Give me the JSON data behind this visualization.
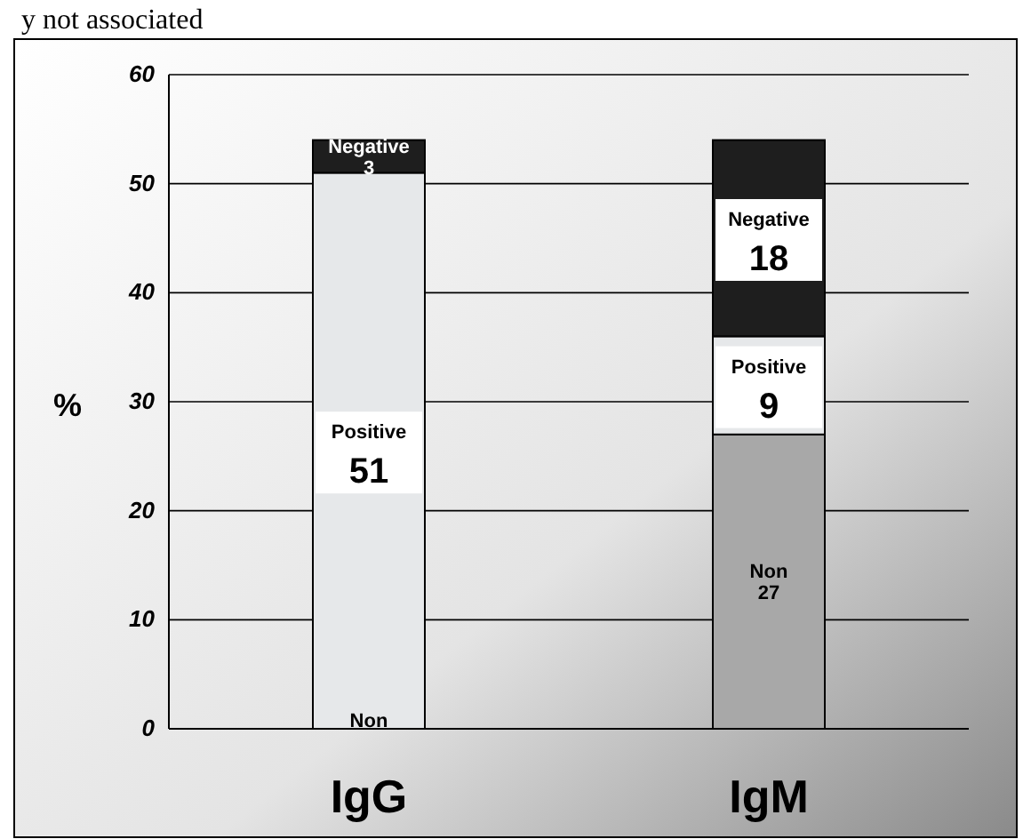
{
  "chart_data": {
    "type": "bar",
    "title": "y not associated",
    "ylabel": "%",
    "categories": [
      "IgG",
      "IgM"
    ],
    "stacked": true,
    "ylim": [
      0,
      60
    ],
    "yticks": [
      0,
      10,
      20,
      30,
      40,
      50,
      60
    ],
    "grid": "y",
    "series": [
      {
        "name": "Non",
        "color": "#a8a8a8",
        "values": [
          0,
          27
        ],
        "value_labels": [
          null,
          "27"
        ]
      },
      {
        "name": "Positive",
        "color": "#e6e8ea",
        "values": [
          51,
          9
        ],
        "value_labels": [
          "51",
          "9"
        ]
      },
      {
        "name": "Negative",
        "color": "#1e1e1e",
        "values": [
          3,
          18
        ],
        "value_labels": [
          "3",
          "18"
        ]
      }
    ]
  }
}
